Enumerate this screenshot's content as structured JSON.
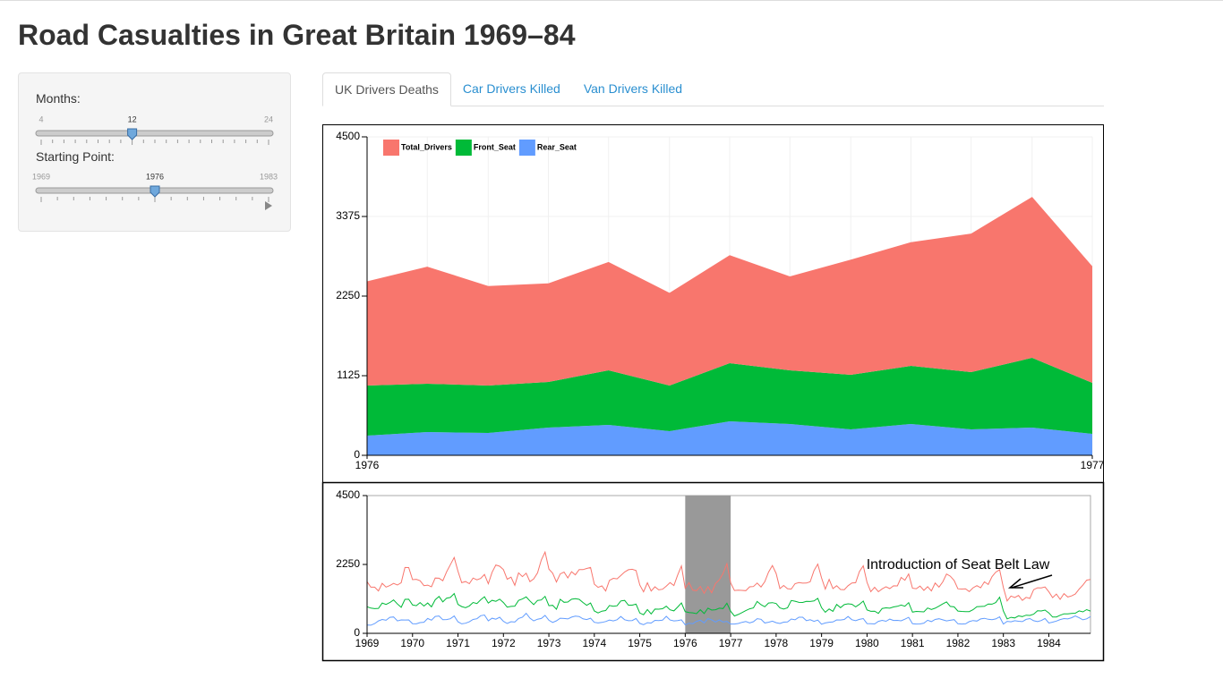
{
  "header": {
    "title": "Road Casualties in Great Britain 1969–84"
  },
  "sidebar": {
    "sliders": [
      {
        "label": "Months:",
        "min": 4,
        "max": 24,
        "value": 12
      },
      {
        "label": "Starting Point:",
        "min": 1969,
        "max": 1983,
        "value": 1976
      }
    ]
  },
  "tabs": [
    "UK Drivers Deaths",
    "Car Drivers Killed",
    "Van Drivers Killed"
  ],
  "chart_data": [
    {
      "type": "area",
      "stacked": true,
      "grid": true,
      "legend": "top-left",
      "x": [
        1976,
        1976.083,
        1976.167,
        1976.25,
        1976.333,
        1976.417,
        1976.5,
        1976.583,
        1976.667,
        1976.75,
        1976.833,
        1976.917,
        1977
      ],
      "xlim": [
        1976,
        1977
      ],
      "xticks": [
        1976,
        1977
      ],
      "ylim": [
        0,
        4500
      ],
      "yticks": [
        0,
        1125,
        2250,
        3375,
        4500
      ],
      "series": [
        {
          "name": "Total_Drivers",
          "color": "#f8766d",
          "values": [
            1473,
            1655,
            1407,
            1395,
            1530,
            1309,
            1526,
            1327,
            1627,
            1748,
            1958,
            2274,
            1648
          ]
        },
        {
          "name": "Front_Seat",
          "color": "#00ba38",
          "values": [
            708,
            682,
            670,
            644,
            771,
            645,
            822,
            759,
            771,
            822,
            809,
            986,
            721
          ]
        },
        {
          "name": "Rear_Seat",
          "color": "#619cff",
          "values": [
            278,
            329,
            316,
            392,
            430,
            341,
            480,
            442,
            367,
            442,
            367,
            392,
            303
          ]
        }
      ]
    },
    {
      "type": "line",
      "brush": [
        1976,
        1977
      ],
      "annotation": "Introduction of Seat Belt Law",
      "x": [
        1969,
        1969.083,
        1969.167,
        1969.25,
        1969.333,
        1969.417,
        1969.5,
        1969.583,
        1969.667,
        1969.75,
        1969.833,
        1969.917,
        1970,
        1970.083,
        1970.167,
        1970.25,
        1970.333,
        1970.417,
        1970.5,
        1970.583,
        1970.667,
        1970.75,
        1970.833,
        1970.917,
        1971,
        1971.083,
        1971.167,
        1971.25,
        1971.333,
        1971.417,
        1971.5,
        1971.583,
        1971.667,
        1971.75,
        1971.833,
        1971.917,
        1972,
        1972.083,
        1972.167,
        1972.25,
        1972.333,
        1972.417,
        1972.5,
        1972.583,
        1972.667,
        1972.75,
        1972.833,
        1972.917,
        1973,
        1973.083,
        1973.167,
        1973.25,
        1973.333,
        1973.417,
        1973.5,
        1973.583,
        1973.667,
        1973.75,
        1973.833,
        1973.917,
        1974,
        1974.083,
        1974.167,
        1974.25,
        1974.333,
        1974.417,
        1974.5,
        1974.583,
        1974.667,
        1974.75,
        1974.833,
        1974.917,
        1975,
        1975.083,
        1975.167,
        1975.25,
        1975.333,
        1975.417,
        1975.5,
        1975.583,
        1975.667,
        1975.75,
        1975.833,
        1975.917,
        1976,
        1976.083,
        1976.167,
        1976.25,
        1976.333,
        1976.417,
        1976.5,
        1976.583,
        1976.667,
        1976.75,
        1976.833,
        1976.917,
        1977,
        1977.083,
        1977.167,
        1977.25,
        1977.333,
        1977.417,
        1977.5,
        1977.583,
        1977.667,
        1977.75,
        1977.833,
        1977.917,
        1978,
        1978.083,
        1978.167,
        1978.25,
        1978.333,
        1978.417,
        1978.5,
        1978.583,
        1978.667,
        1978.75,
        1978.833,
        1978.917,
        1979,
        1979.083,
        1979.167,
        1979.25,
        1979.333,
        1979.417,
        1979.5,
        1979.583,
        1979.667,
        1979.75,
        1979.833,
        1979.917,
        1980,
        1980.083,
        1980.167,
        1980.25,
        1980.333,
        1980.417,
        1980.5,
        1980.583,
        1980.667,
        1980.75,
        1980.833,
        1980.917,
        1981,
        1981.083,
        1981.167,
        1981.25,
        1981.333,
        1981.417,
        1981.5,
        1981.583,
        1981.667,
        1981.75,
        1981.833,
        1981.917,
        1982,
        1982.083,
        1982.167,
        1982.25,
        1982.333,
        1982.417,
        1982.5,
        1982.583,
        1982.667,
        1982.75,
        1982.833,
        1982.917,
        1983,
        1983.083,
        1983.167,
        1983.25,
        1983.333,
        1983.417,
        1983.5,
        1983.583,
        1983.667,
        1983.75,
        1983.833,
        1983.917,
        1984,
        1984.083,
        1984.167,
        1984.25,
        1984.333,
        1984.417,
        1984.5,
        1984.583,
        1984.667,
        1984.75,
        1984.833,
        1984.917
      ],
      "xlim": [
        1969,
        1984.917
      ],
      "xticks": [
        1969,
        1970,
        1971,
        1972,
        1973,
        1974,
        1975,
        1976,
        1977,
        1978,
        1979,
        1980,
        1981,
        1982,
        1983,
        1984
      ],
      "ylim": [
        0,
        4500
      ],
      "yticks": [
        0,
        2250,
        4500
      ],
      "series": [
        {
          "name": "Total_Drivers",
          "color": "#f8766d",
          "values": [
            1687,
            1508,
            1507,
            1385,
            1632,
            1511,
            1559,
            1630,
            1579,
            1653,
            2152,
            2148,
            1752,
            1765,
            1717,
            1558,
            1575,
            1520,
            1805,
            1800,
            1719,
            2008,
            2242,
            2478,
            2030,
            1655,
            1693,
            1623,
            1805,
            1746,
            1795,
            1926,
            1619,
            1992,
            2233,
            2192,
            2080,
            1768,
            1835,
            1569,
            1976,
            1853,
            1965,
            1689,
            1778,
            1976,
            2397,
            2654,
            2097,
            1963,
            1677,
            1941,
            2003,
            1813,
            2012,
            1912,
            2084,
            2080,
            2118,
            2150,
            1608,
            1503,
            1548,
            1382,
            1731,
            1798,
            1779,
            1887,
            2004,
            2077,
            2092,
            2051,
            1577,
            1356,
            1652,
            1382,
            1519,
            1421,
            1442,
            1543,
            1656,
            1561,
            1905,
            2199,
            1473,
            1655,
            1407,
            1395,
            1530,
            1309,
            1526,
            1327,
            1627,
            1748,
            1958,
            2274,
            1648,
            1401,
            1411,
            1403,
            1394,
            1520,
            1528,
            1643,
            1515,
            1685,
            2000,
            2215,
            1956,
            1462,
            1563,
            1459,
            1446,
            1622,
            1657,
            1638,
            1643,
            1683,
            2050,
            2262,
            1813,
            1445,
            1762,
            1461,
            1556,
            1431,
            1427,
            1554,
            1645,
            1653,
            2016,
            2207,
            1665,
            1361,
            1506,
            1360,
            1453,
            1522,
            1460,
            1552,
            1548,
            1827,
            1737,
            1941,
            1474,
            1458,
            1542,
            1404,
            1522,
            1385,
            1641,
            1510,
            1681,
            1938,
            1868,
            1726,
            1456,
            1445,
            1456,
            1365,
            1487,
            1558,
            1488,
            1684,
            1594,
            1850,
            1998,
            2079,
            1494,
            1057,
            1218,
            1168,
            1236,
            1076,
            1174,
            1139,
            1427,
            1487,
            1483,
            1513,
            1357,
            1165,
            1282,
            1110,
            1297,
            1185,
            1222,
            1284,
            1444,
            1575,
            1737,
            1763
          ]
        },
        {
          "name": "Front_Seat",
          "color": "#00ba38",
          "values": [
            867,
            825,
            806,
            814,
            991,
            945,
            1004,
            1091,
            958,
            850,
            1109,
            1113,
            925,
            903,
            1006,
            892,
            990,
            866,
            1095,
            1204,
            1029,
            1147,
            1171,
            1299,
            944,
            874,
            840,
            893,
            1007,
            973,
            1097,
            1194,
            988,
            1077,
            1045,
            1115,
            1005,
            857,
            879,
            887,
            1075,
            1121,
            1190,
            1058,
            939,
            1074,
            1089,
            1208,
            903,
            916,
            787,
            1114,
            1014,
            1022,
            1114,
            1132,
            1111,
            1008,
            916,
            992,
            731,
            665,
            724,
            744,
            910,
            883,
            900,
            1057,
            1076,
            919,
            920,
            953,
            664,
            607,
            777,
            633,
            791,
            790,
            803,
            884,
            769,
            732,
            859,
            994,
            708,
            682,
            670,
            644,
            771,
            645,
            822,
            759,
            771,
            822,
            809,
            986,
            721,
            567,
            616,
            678,
            742,
            801,
            829,
            1040,
            936,
            869,
            992,
            1002,
            974,
            831,
            796,
            832,
            1071,
            1048,
            1011,
            1009,
            1043,
            1040,
            1058,
            1143,
            838,
            691,
            795,
            719,
            943,
            840,
            937,
            964,
            951,
            865,
            948,
            1054,
            766,
            718,
            724,
            653,
            811,
            833,
            821,
            861,
            883,
            923,
            886,
            1001,
            692,
            717,
            710,
            700,
            827,
            779,
            820,
            889,
            961,
            1025,
            881,
            865,
            728,
            717,
            709,
            710,
            772,
            871,
            876,
            882,
            959,
            952,
            1006,
            1180,
            729,
            470,
            522,
            502,
            571,
            545,
            592,
            583,
            626,
            735,
            730,
            759,
            666,
            533,
            536,
            591,
            636,
            637,
            650,
            658,
            733,
            702,
            773,
            728
          ]
        },
        {
          "name": "Rear_Seat",
          "color": "#619cff",
          "values": [
            269,
            265,
            319,
            407,
            454,
            427,
            522,
            536,
            405,
            437,
            434,
            437,
            316,
            311,
            351,
            362,
            486,
            429,
            551,
            566,
            445,
            451,
            475,
            566,
            377,
            311,
            330,
            377,
            453,
            475,
            577,
            599,
            409,
            495,
            461,
            527,
            392,
            321,
            380,
            369,
            486,
            525,
            654,
            496,
            406,
            463,
            484,
            585,
            426,
            357,
            409,
            493,
            485,
            470,
            529,
            561,
            548,
            473,
            449,
            493,
            359,
            338,
            356,
            386,
            435,
            405,
            445,
            548,
            445,
            413,
            418,
            485,
            323,
            283,
            349,
            336,
            425,
            417,
            431,
            555,
            435,
            407,
            414,
            440,
            278,
            329,
            316,
            392,
            430,
            341,
            480,
            442,
            367,
            442,
            367,
            392,
            303,
            305,
            321,
            360,
            387,
            339,
            379,
            480,
            460,
            339,
            363,
            396,
            347,
            322,
            365,
            372,
            467,
            442,
            526,
            527,
            414,
            444,
            392,
            433,
            299,
            340,
            362,
            370,
            439,
            434,
            452,
            550,
            443,
            416,
            455,
            483,
            319,
            316,
            306,
            393,
            424,
            394,
            465,
            420,
            424,
            408,
            463,
            523,
            314,
            303,
            307,
            334,
            427,
            382,
            454,
            476,
            442,
            407,
            426,
            446,
            312,
            304,
            311,
            384,
            417,
            400,
            470,
            491,
            459,
            446,
            469,
            539,
            303,
            391,
            377,
            411,
            395,
            383,
            455,
            482,
            411,
            382,
            419,
            484,
            337,
            364,
            400,
            450,
            483,
            470,
            508,
            571,
            508,
            442,
            474,
            546
          ]
        }
      ]
    }
  ]
}
